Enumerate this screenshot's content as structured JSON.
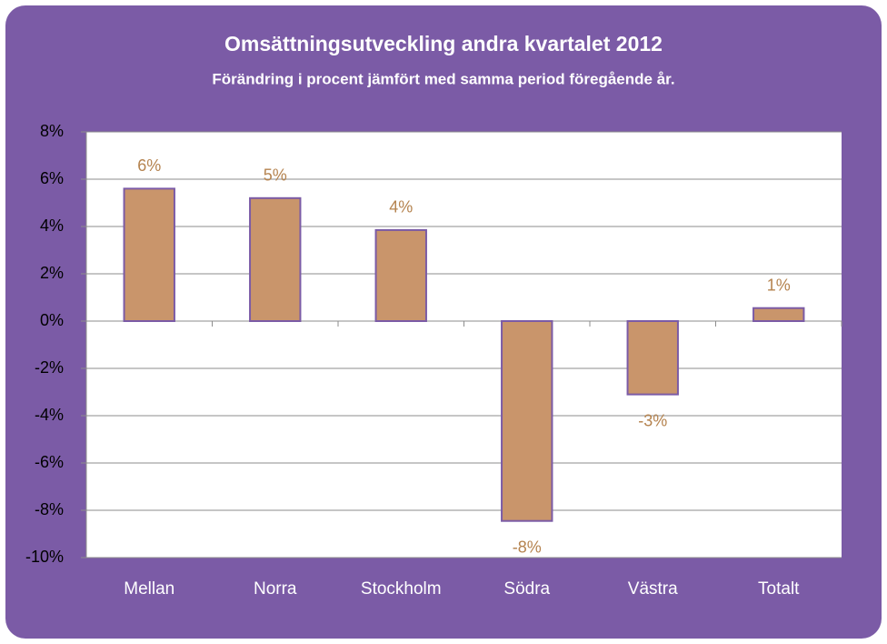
{
  "chart_data": {
    "type": "bar",
    "title": "Omsättningsutveckling andra kvartalet 2012",
    "subtitle": "Förändring i procent jämfört med samma period föregående år.",
    "categories": [
      "Mellan",
      "Norra",
      "Stockholm",
      "Södra",
      "Västra",
      "Totalt"
    ],
    "values": [
      5.6,
      5.2,
      3.85,
      -8.45,
      -3.1,
      0.55
    ],
    "value_labels": [
      "6%",
      "5%",
      "4%",
      "-8%",
      "-3%",
      "1%"
    ],
    "color": "#c9956b",
    "ylim": [
      -10,
      8
    ],
    "yticks": [
      {
        "value": 8,
        "label": "8%"
      },
      {
        "value": 6,
        "label": "6%"
      },
      {
        "value": 4,
        "label": "4%"
      },
      {
        "value": 2,
        "label": "2%"
      },
      {
        "value": 0,
        "label": "0%"
      },
      {
        "value": -2,
        "label": "-2%"
      },
      {
        "value": -4,
        "label": "-4%"
      },
      {
        "value": -6,
        "label": "-6%"
      },
      {
        "value": -8,
        "label": "-8%"
      },
      {
        "value": -10,
        "label": "-10%"
      }
    ],
    "grid": true
  }
}
